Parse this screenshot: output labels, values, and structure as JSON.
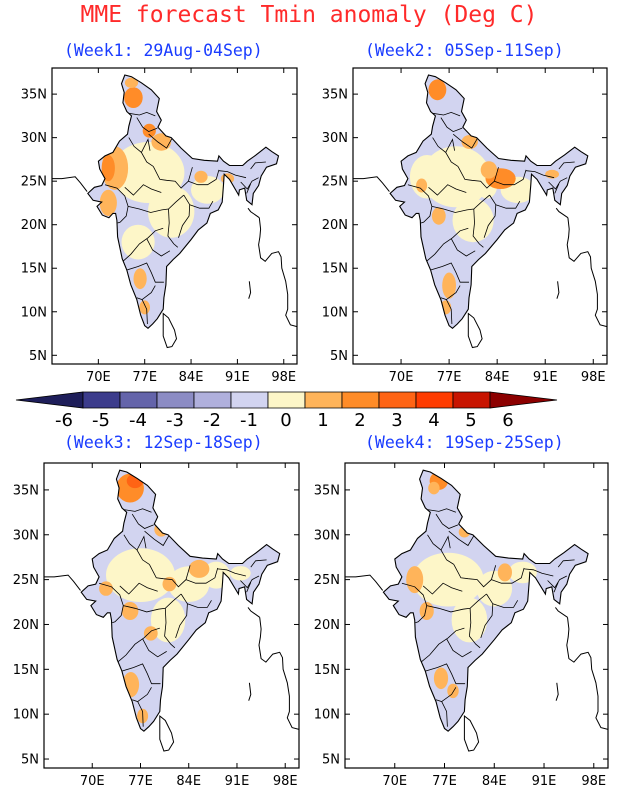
{
  "title": "MME forecast Tmin anomaly (Deg C)",
  "colors": {
    "title": "#ff2a2a",
    "panel_title": "#1a3cff",
    "outline": "#000000"
  },
  "panels": [
    {
      "title": "(Week1: 29Aug-04Sep)"
    },
    {
      "title": "(Week2: 05Sep-11Sep)"
    },
    {
      "title": "(Week3: 12Sep-18Sep)"
    },
    {
      "title": "(Week4: 19Sep-25Sep)"
    }
  ],
  "axes": {
    "x_ticks": [
      "70E",
      "77E",
      "84E",
      "91E",
      "98E"
    ],
    "x_values": [
      70,
      77,
      84,
      91,
      98
    ],
    "y_ticks": [
      "5N",
      "10N",
      "15N",
      "20N",
      "25N",
      "30N",
      "35N"
    ],
    "y_values": [
      5,
      10,
      15,
      20,
      25,
      30,
      35
    ],
    "lon_range": [
      63,
      100
    ],
    "lat_range": [
      4,
      38
    ]
  },
  "colorbar": {
    "labels": [
      "-6",
      "-5",
      "-4",
      "-3",
      "-2",
      "-1",
      "0",
      "1",
      "2",
      "3",
      "4",
      "5",
      "6"
    ],
    "colors": [
      "#1e1e5a",
      "#3c3c8c",
      "#6464aa",
      "#8c8cc4",
      "#b0b0dc",
      "#d2d4f0",
      "#fdf6c8",
      "#ffb45a",
      "#ff8c28",
      "#ff6414",
      "#ff3c00",
      "#c81400",
      "#8c0000"
    ]
  }
}
